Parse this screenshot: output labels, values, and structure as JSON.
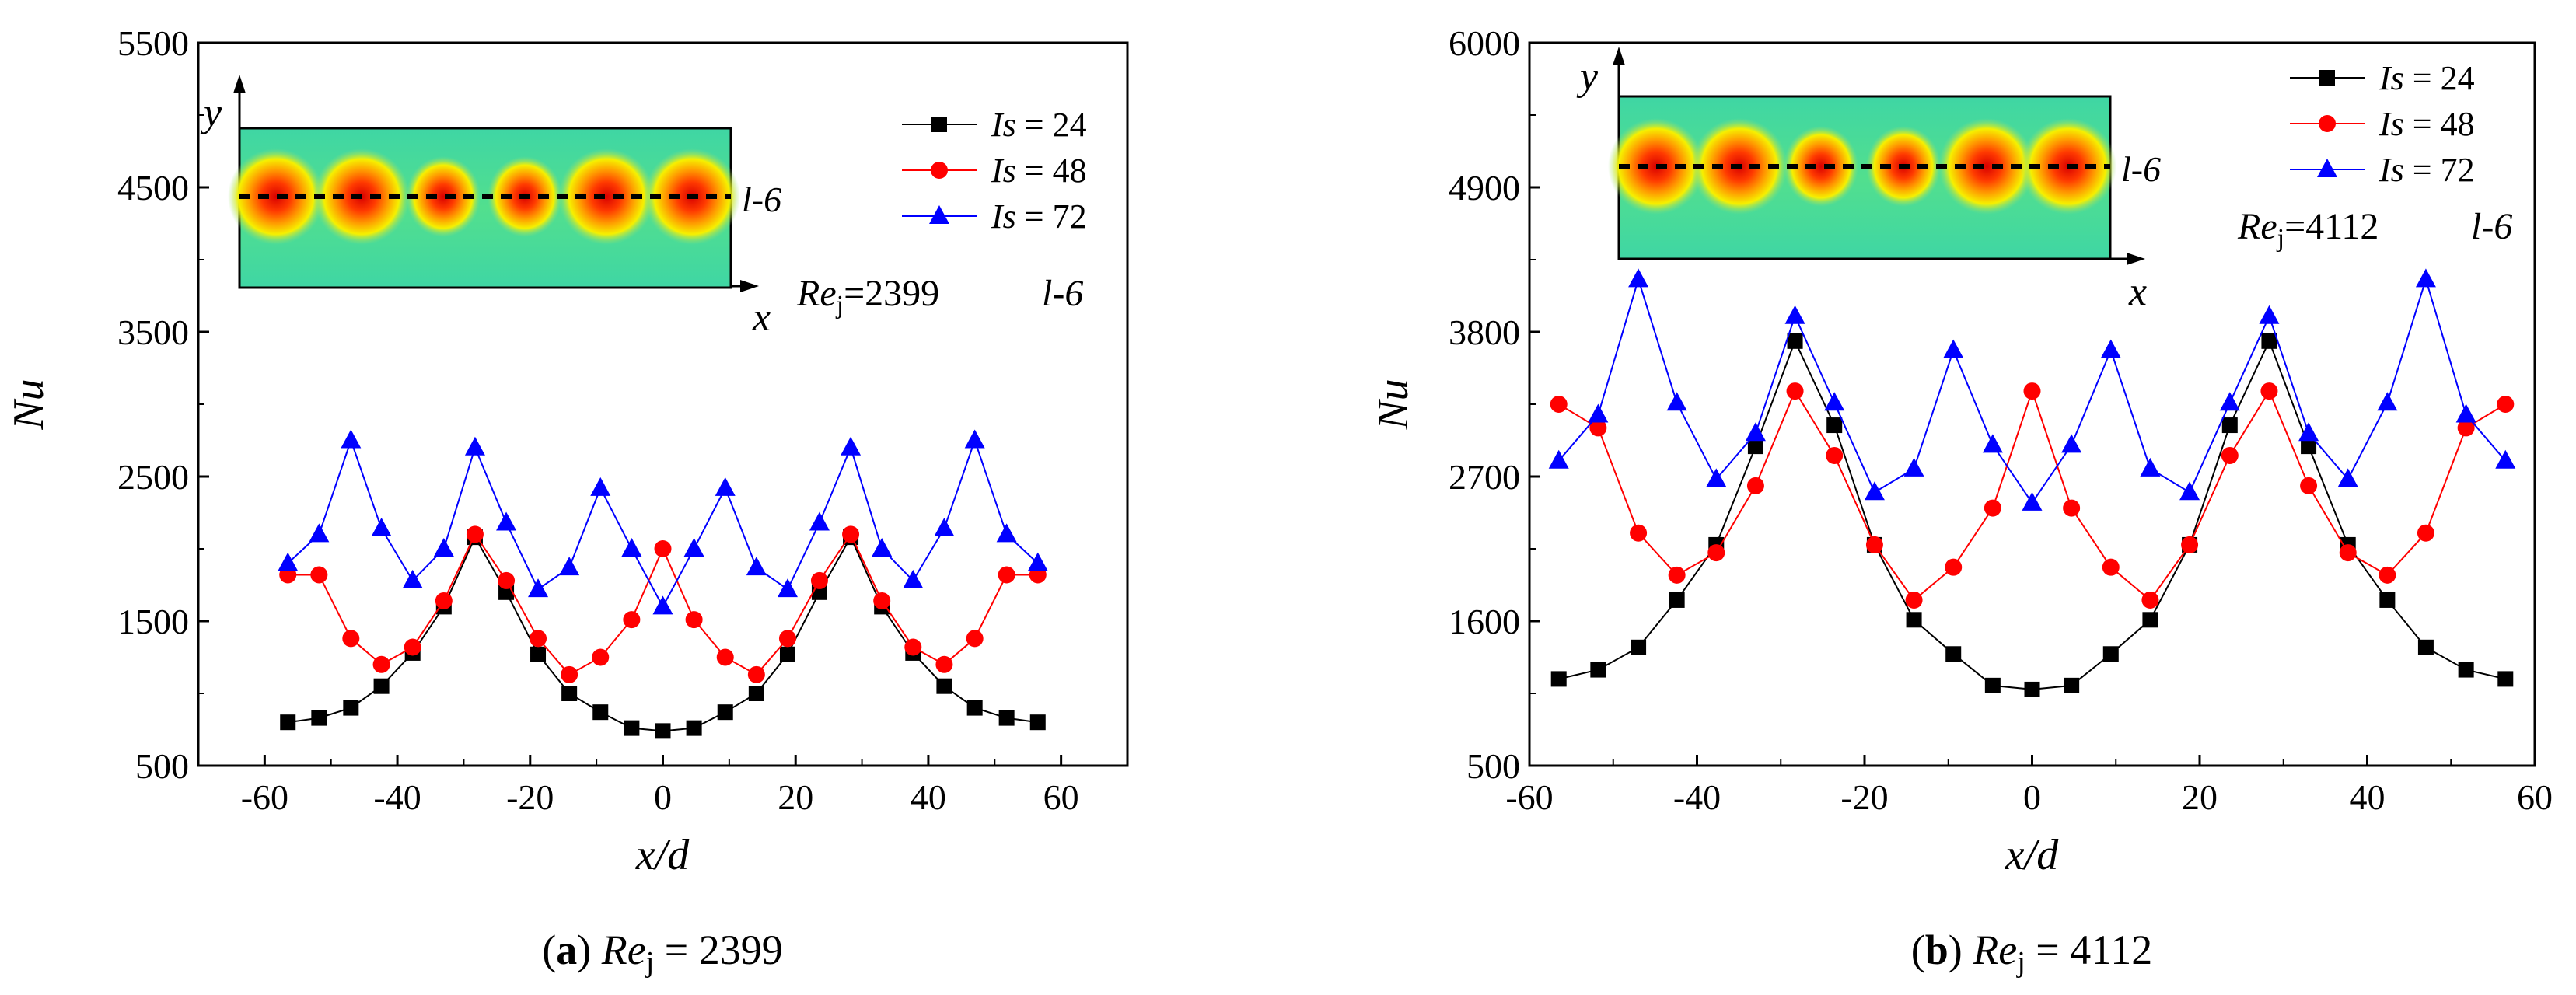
{
  "figure": {
    "panels": [
      {
        "caption": {
          "letter": "a",
          "re_sym": "Re",
          "re_sub": "j",
          "re_eq": " = 2399"
        },
        "inset": {
          "y_label": "y",
          "x_label": "x",
          "line_label": "l-6"
        },
        "annotation": {
          "re_sym": "Re",
          "re_sub": "j",
          "re_val": "=2399",
          "line_label": "l-6"
        }
      },
      {
        "caption": {
          "letter": "b",
          "re_sym": "Re",
          "re_sub": "j",
          "re_eq": " = 4112"
        },
        "inset": {
          "y_label": "y",
          "x_label": "x",
          "line_label": "l-6"
        },
        "annotation": {
          "re_sym": "Re",
          "re_sub": "j",
          "re_val": "=4112",
          "line_label": "l-6"
        }
      }
    ]
  },
  "chart_data": [
    {
      "type": "line",
      "xlabel": "x/d",
      "ylabel": "Nu",
      "xlim": [
        -70,
        70
      ],
      "ylim": [
        500,
        5500
      ],
      "x_ticks": [
        -60,
        -40,
        -20,
        0,
        20,
        40,
        60
      ],
      "y_ticks": [
        500,
        1500,
        2500,
        3500,
        4500,
        5500
      ],
      "x_tick_labels": [
        "-60",
        "-40",
        "-20",
        "0",
        "20",
        "40",
        "60"
      ],
      "y_tick_labels": [
        "500",
        "1500",
        "2500",
        "3500",
        "4500",
        "5500"
      ],
      "legend_position": "top-right",
      "series": [
        {
          "label_sym": "Is",
          "label_eq": " = 24",
          "color": "#000000",
          "marker": "square",
          "x": [
            -56.5,
            -51.8,
            -47,
            -42.4,
            -37.7,
            -33,
            -28.3,
            -23.6,
            -18.8,
            -14.1,
            -9.4,
            -4.7,
            0,
            4.7,
            9.4,
            14.1,
            18.8,
            23.6,
            28.3,
            33,
            37.7,
            42.4,
            47,
            51.8,
            56.5
          ],
          "y": [
            800,
            830,
            900,
            1050,
            1280,
            1600,
            2080,
            1700,
            1270,
            1000,
            870,
            760,
            740,
            760,
            870,
            1000,
            1270,
            1700,
            2080,
            1600,
            1280,
            1050,
            900,
            830,
            800
          ]
        },
        {
          "label_sym": "Is",
          "label_eq": " = 48",
          "color": "#ff0000",
          "marker": "circle",
          "x": [
            -56.5,
            -51.8,
            -47,
            -42.4,
            -37.7,
            -33,
            -28.3,
            -23.6,
            -18.8,
            -14.1,
            -9.4,
            -4.7,
            0,
            4.7,
            9.4,
            14.1,
            18.8,
            23.6,
            28.3,
            33,
            37.7,
            42.4,
            47,
            51.8,
            56.5
          ],
          "y": [
            1820,
            1820,
            1380,
            1200,
            1320,
            1640,
            2100,
            1780,
            1380,
            1130,
            1250,
            1510,
            2000,
            1510,
            1250,
            1130,
            1380,
            1780,
            2100,
            1640,
            1320,
            1200,
            1380,
            1820,
            1820
          ]
        },
        {
          "label_sym": "Is",
          "label_eq": " = 72",
          "color": "#0000ff",
          "marker": "triangle",
          "x": [
            -56.5,
            -51.8,
            -47,
            -42.4,
            -37.7,
            -33,
            -28.3,
            -23.6,
            -18.8,
            -14.1,
            -9.4,
            -4.7,
            0,
            4.7,
            9.4,
            14.1,
            18.8,
            23.6,
            28.3,
            33,
            37.7,
            42.4,
            47,
            51.8,
            56.5
          ],
          "y": [
            1900,
            2100,
            2750,
            2140,
            1780,
            2000,
            2700,
            2180,
            1720,
            1870,
            2420,
            2000,
            1600,
            2000,
            2420,
            1870,
            1720,
            2180,
            2700,
            2000,
            1780,
            2140,
            2750,
            2100,
            1900
          ]
        }
      ]
    },
    {
      "type": "line",
      "xlabel": "x/d",
      "ylabel": "Nu",
      "xlim": [
        -60,
        60
      ],
      "ylim": [
        500,
        6000
      ],
      "x_ticks": [
        -60,
        -40,
        -20,
        0,
        20,
        40,
        60
      ],
      "y_ticks": [
        500,
        1600,
        2700,
        3800,
        4900,
        6000
      ],
      "x_tick_labels": [
        "-60",
        "-40",
        "-20",
        "0",
        "20",
        "40",
        "60"
      ],
      "y_tick_labels": [
        "500",
        "1600",
        "2700",
        "3800",
        "4900",
        "6000"
      ],
      "legend_position": "top-right",
      "series": [
        {
          "label_sym": "Is",
          "label_eq": " = 24",
          "color": "#000000",
          "marker": "square",
          "x": [
            -56.5,
            -51.8,
            -47,
            -42.4,
            -37.7,
            -33,
            -28.3,
            -23.6,
            -18.8,
            -14.1,
            -9.4,
            -4.7,
            0,
            4.7,
            9.4,
            14.1,
            18.8,
            23.6,
            28.3,
            33,
            37.7,
            42.4,
            47,
            51.8,
            56.5
          ],
          "y": [
            1160,
            1230,
            1400,
            1760,
            2180,
            2930,
            3730,
            3090,
            2180,
            1610,
            1350,
            1110,
            1080,
            1110,
            1350,
            1610,
            2180,
            3090,
            3730,
            2930,
            2180,
            1760,
            1400,
            1230,
            1160
          ]
        },
        {
          "label_sym": "Is",
          "label_eq": " = 48",
          "color": "#ff0000",
          "marker": "circle",
          "x": [
            -56.5,
            -51.8,
            -47,
            -42.4,
            -37.7,
            -33,
            -28.3,
            -23.6,
            -18.8,
            -14.1,
            -9.4,
            -4.7,
            0,
            4.7,
            9.4,
            14.1,
            18.8,
            23.6,
            28.3,
            33,
            37.7,
            42.4,
            47,
            51.8,
            56.5
          ],
          "y": [
            3250,
            3070,
            2270,
            1950,
            2120,
            2630,
            3350,
            2860,
            2180,
            1760,
            2010,
            2460,
            3350,
            2460,
            2010,
            1760,
            2180,
            2860,
            3350,
            2630,
            2120,
            1950,
            2270,
            3070,
            3250
          ]
        },
        {
          "label_sym": "Is",
          "label_eq": " = 72",
          "color": "#0000ff",
          "marker": "triangle",
          "x": [
            -56.5,
            -51.8,
            -47,
            -42.4,
            -37.7,
            -33,
            -28.3,
            -23.6,
            -18.8,
            -14.1,
            -9.4,
            -4.7,
            0,
            4.7,
            9.4,
            14.1,
            18.8,
            23.6,
            28.3,
            33,
            37.7,
            42.4,
            47,
            51.8,
            56.5
          ],
          "y": [
            2820,
            3170,
            4200,
            3260,
            2680,
            3030,
            3920,
            3260,
            2580,
            2760,
            3660,
            2940,
            2500,
            2940,
            3660,
            2760,
            2580,
            3260,
            3920,
            3030,
            2680,
            3260,
            4200,
            3170,
            2820
          ]
        }
      ]
    }
  ]
}
